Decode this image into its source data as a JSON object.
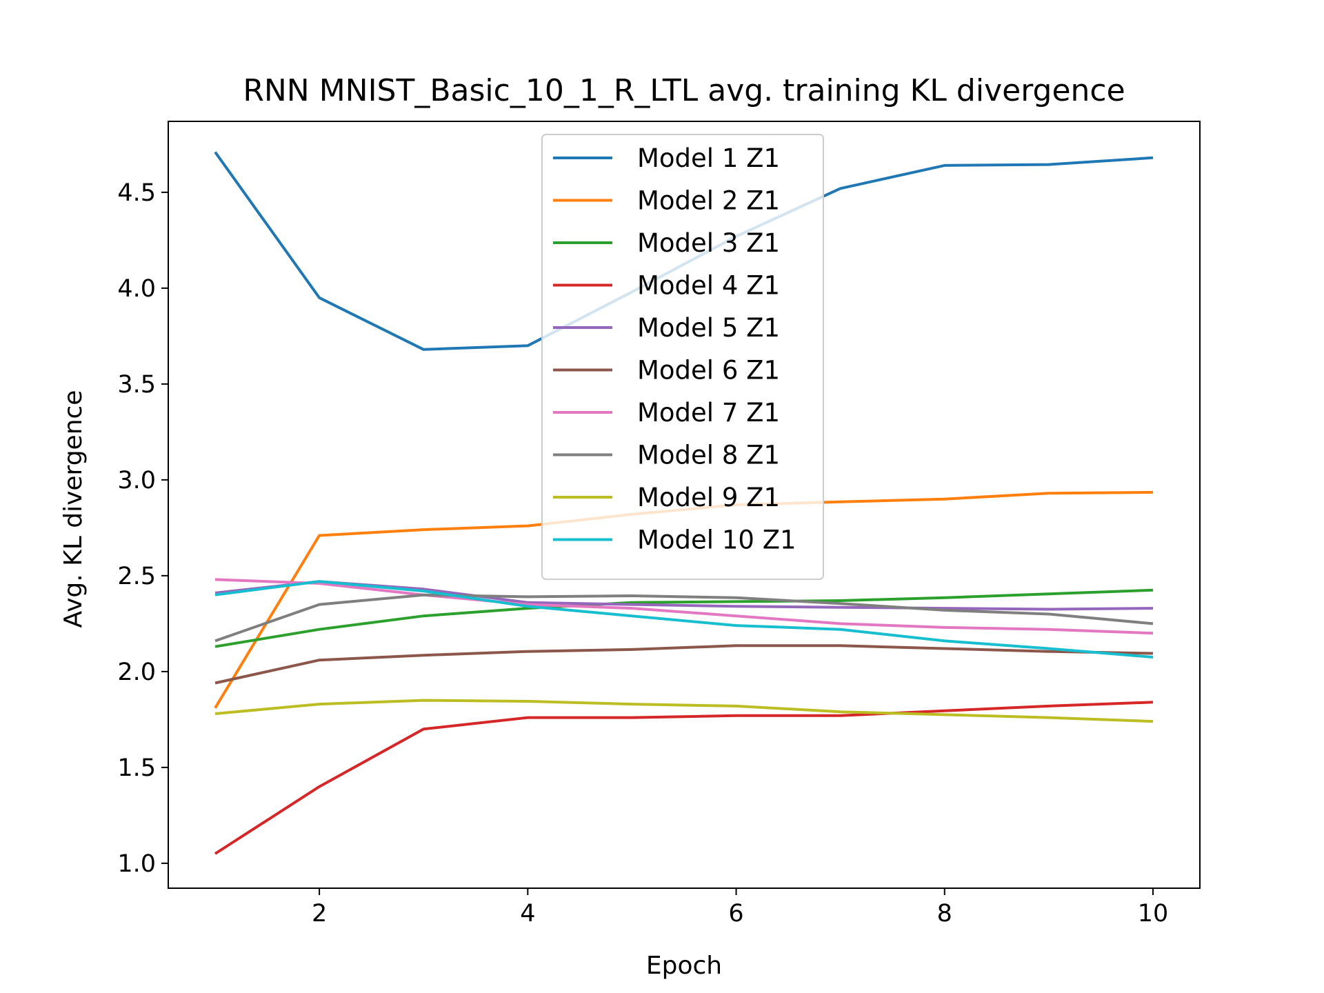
{
  "chart_data": {
    "type": "line",
    "title": "RNN MNIST_Basic_10_1_R_LTL avg. training KL divergence",
    "xlabel": "Epoch",
    "ylabel": "Avg. KL divergence",
    "xlim": [
      0.55,
      10.45
    ],
    "ylim": [
      0.87,
      4.87
    ],
    "xticks": [
      2,
      4,
      6,
      8,
      10
    ],
    "yticks": [
      1.0,
      1.5,
      2.0,
      2.5,
      3.0,
      3.5,
      4.0,
      4.5
    ],
    "grid": false,
    "legend_position": "top-center",
    "x": [
      1,
      2,
      3,
      4,
      5,
      6,
      7,
      8,
      9,
      10
    ],
    "series": [
      {
        "name": "Model 1 Z1",
        "color": "#1f77b4",
        "values": [
          4.71,
          3.95,
          3.68,
          3.7,
          3.98,
          4.27,
          4.52,
          4.64,
          4.645,
          4.68
        ]
      },
      {
        "name": "Model 2 Z1",
        "color": "#ff7f0e",
        "values": [
          1.81,
          2.71,
          2.74,
          2.76,
          2.82,
          2.87,
          2.885,
          2.9,
          2.93,
          2.935
        ]
      },
      {
        "name": "Model 3 Z1",
        "color": "#2ca02c",
        "values": [
          2.13,
          2.22,
          2.29,
          2.33,
          2.36,
          2.365,
          2.37,
          2.385,
          2.405,
          2.425
        ]
      },
      {
        "name": "Model 4 Z1",
        "color": "#d62728",
        "values": [
          1.05,
          1.4,
          1.7,
          1.76,
          1.76,
          1.77,
          1.77,
          1.795,
          1.82,
          1.84
        ]
      },
      {
        "name": "Model 5 Z1",
        "color": "#9467bd",
        "values": [
          2.41,
          2.47,
          2.43,
          2.36,
          2.35,
          2.34,
          2.335,
          2.33,
          2.325,
          2.33
        ]
      },
      {
        "name": "Model 6 Z1",
        "color": "#8c564b",
        "values": [
          1.94,
          2.06,
          2.085,
          2.105,
          2.115,
          2.135,
          2.135,
          2.12,
          2.105,
          2.095
        ]
      },
      {
        "name": "Model 7 Z1",
        "color": "#e377c2",
        "values": [
          2.48,
          2.46,
          2.4,
          2.35,
          2.33,
          2.29,
          2.25,
          2.23,
          2.22,
          2.2
        ]
      },
      {
        "name": "Model 8 Z1",
        "color": "#7f7f7f",
        "values": [
          2.16,
          2.35,
          2.4,
          2.39,
          2.395,
          2.385,
          2.355,
          2.32,
          2.3,
          2.25
        ]
      },
      {
        "name": "Model 9 Z1",
        "color": "#bcbd22",
        "values": [
          1.78,
          1.83,
          1.85,
          1.845,
          1.83,
          1.82,
          1.79,
          1.775,
          1.76,
          1.74
        ]
      },
      {
        "name": "Model 10 Z1",
        "color": "#17becf",
        "values": [
          2.4,
          2.47,
          2.42,
          2.34,
          2.29,
          2.24,
          2.22,
          2.16,
          2.12,
          2.075
        ]
      }
    ]
  }
}
